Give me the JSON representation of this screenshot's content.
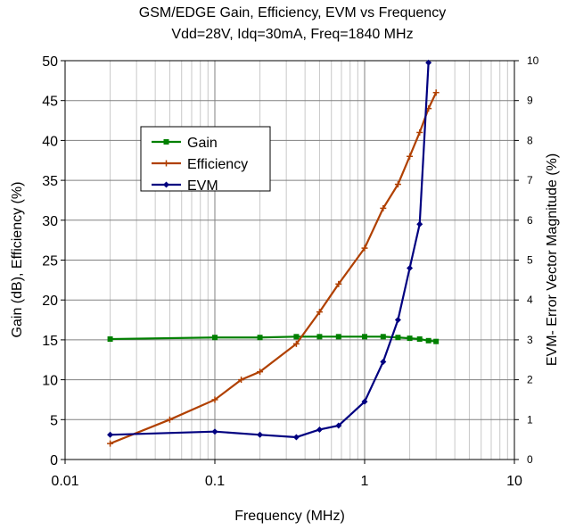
{
  "chart_data": {
    "type": "line",
    "title": "GSM/EDGE     Gain, Efficiency, EVM  vs Frequency",
    "subtitle": "Vdd=28V, Idq=30mA, Freq=1840 MHz",
    "xlabel": "Frequency (MHz)",
    "ylabel": "Gain (dB), Efficiency (%)",
    "y2label": "EVM- Error Vector Magnitude (%)",
    "xscale": "log",
    "xlim": [
      0.01,
      10
    ],
    "ylim": [
      0,
      50
    ],
    "y2lim": [
      0,
      10
    ],
    "x_ticks": [
      "0.01",
      "0.1",
      "1",
      "10"
    ],
    "y_ticks": [
      "0",
      "5",
      "10",
      "15",
      "20",
      "25",
      "30",
      "35",
      "40",
      "45",
      "50"
    ],
    "y2_ticks": [
      "0",
      "1",
      "2",
      "3",
      "4",
      "5",
      "6",
      "7",
      "8",
      "9",
      "10"
    ],
    "grid": true,
    "legend_position": "upper-left",
    "series": [
      {
        "name": "Gain",
        "axis": "left",
        "color": "#008000",
        "marker": "square",
        "x": [
          0.02,
          0.1,
          0.2,
          0.35,
          0.5,
          0.67,
          1.0,
          1.33,
          1.67,
          2.0,
          2.33,
          2.67,
          3.0
        ],
        "y": [
          15.1,
          15.3,
          15.3,
          15.4,
          15.4,
          15.4,
          15.4,
          15.4,
          15.3,
          15.2,
          15.1,
          14.9,
          14.8
        ]
      },
      {
        "name": "Efficiency",
        "axis": "left",
        "color": "#B04000",
        "marker": "plus",
        "x": [
          0.02,
          0.05,
          0.1,
          0.15,
          0.2,
          0.35,
          0.5,
          0.67,
          1.0,
          1.33,
          1.67,
          2.0,
          2.33,
          2.67,
          3.0
        ],
        "y": [
          2.0,
          5.0,
          7.5,
          10.0,
          11.0,
          14.5,
          18.5,
          22.0,
          26.5,
          31.5,
          34.5,
          38.0,
          41.0,
          44.0,
          46.0
        ]
      },
      {
        "name": "EVM",
        "axis": "right",
        "color": "#000080",
        "marker": "diamond",
        "x": [
          0.02,
          0.1,
          0.2,
          0.35,
          0.5,
          0.67,
          1.0,
          1.33,
          1.67,
          2.0,
          2.33,
          2.67
        ],
        "y": [
          0.62,
          0.7,
          0.62,
          0.56,
          0.75,
          0.85,
          1.45,
          2.45,
          3.5,
          4.8,
          5.9,
          9.95
        ]
      }
    ]
  }
}
